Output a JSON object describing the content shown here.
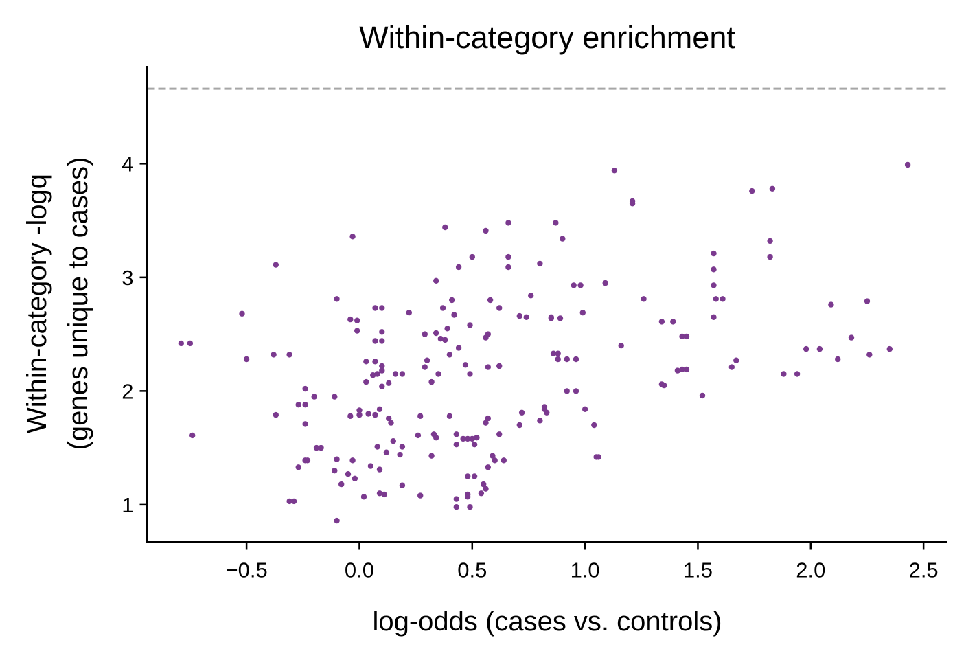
{
  "chart_data": {
    "type": "scatter",
    "title": "Within-category enrichment",
    "xlabel": "log-odds (cases vs. controls)",
    "ylabel_lines": [
      "Within-category -logq",
      "(genes unique to cases)"
    ],
    "xlim": [
      -0.94,
      2.6
    ],
    "ylim": [
      0.67,
      4.86
    ],
    "xticks": [
      -0.5,
      0.0,
      0.5,
      1.0,
      1.5,
      2.0,
      2.5
    ],
    "xtick_labels": [
      "−0.5",
      "0.0",
      "0.5",
      "1.0",
      "1.5",
      "2.0",
      "2.5"
    ],
    "yticks": [
      1,
      2,
      3,
      4
    ],
    "ytick_labels": [
      "1",
      "2",
      "3",
      "4"
    ],
    "threshold_line": {
      "y": 4.66,
      "style": "dashed",
      "color": "#a6a6a6"
    },
    "grid": false,
    "point_color": "#7b3a8f",
    "points": [
      [
        -0.79,
        2.42
      ],
      [
        -0.75,
        2.42
      ],
      [
        -0.74,
        1.61
      ],
      [
        -0.52,
        2.68
      ],
      [
        -0.5,
        2.28
      ],
      [
        -0.37,
        3.11
      ],
      [
        -0.38,
        2.32
      ],
      [
        -0.37,
        1.79
      ],
      [
        -0.31,
        2.32
      ],
      [
        -0.31,
        1.03
      ],
      [
        -0.29,
        1.03
      ],
      [
        -0.27,
        1.33
      ],
      [
        -0.27,
        1.88
      ],
      [
        -0.24,
        2.02
      ],
      [
        -0.24,
        1.88
      ],
      [
        -0.24,
        1.71
      ],
      [
        -0.24,
        1.39
      ],
      [
        -0.23,
        1.39
      ],
      [
        -0.2,
        1.95
      ],
      [
        -0.19,
        1.5
      ],
      [
        -0.17,
        1.5
      ],
      [
        -0.11,
        1.95
      ],
      [
        -0.11,
        1.3
      ],
      [
        -0.1,
        2.81
      ],
      [
        -0.1,
        1.4
      ],
      [
        -0.1,
        0.86
      ],
      [
        -0.08,
        1.18
      ],
      [
        -0.05,
        1.27
      ],
      [
        -0.04,
        2.63
      ],
      [
        -0.04,
        1.78
      ],
      [
        -0.03,
        3.36
      ],
      [
        -0.03,
        1.39
      ],
      [
        -0.02,
        1.23
      ],
      [
        -0.01,
        2.62
      ],
      [
        -0.01,
        2.53
      ],
      [
        -0.0,
        1.83
      ],
      [
        0.0,
        1.79
      ],
      [
        0.02,
        1.07
      ],
      [
        0.03,
        2.26
      ],
      [
        0.03,
        2.08
      ],
      [
        0.04,
        1.8
      ],
      [
        0.05,
        1.34
      ],
      [
        0.06,
        2.14
      ],
      [
        0.07,
        2.73
      ],
      [
        0.07,
        2.44
      ],
      [
        0.07,
        2.26
      ],
      [
        0.07,
        1.79
      ],
      [
        0.08,
        1.51
      ],
      [
        0.08,
        2.15
      ],
      [
        0.09,
        1.84
      ],
      [
        0.09,
        1.31
      ],
      [
        0.09,
        1.1
      ],
      [
        0.1,
        2.73
      ],
      [
        0.1,
        2.52
      ],
      [
        0.1,
        2.44
      ],
      [
        0.1,
        2.22
      ],
      [
        0.1,
        2.18
      ],
      [
        0.1,
        2.04
      ],
      [
        0.11,
        1.09
      ],
      [
        0.12,
        1.46
      ],
      [
        0.13,
        2.07
      ],
      [
        0.13,
        1.76
      ],
      [
        0.14,
        1.72
      ],
      [
        0.15,
        1.56
      ],
      [
        0.16,
        2.15
      ],
      [
        0.18,
        1.44
      ],
      [
        0.19,
        2.15
      ],
      [
        0.19,
        1.51
      ],
      [
        0.19,
        1.17
      ],
      [
        0.22,
        2.69
      ],
      [
        0.26,
        1.61
      ],
      [
        0.27,
        1.78
      ],
      [
        0.27,
        1.08
      ],
      [
        0.29,
        2.5
      ],
      [
        0.29,
        2.21
      ],
      [
        0.3,
        2.27
      ],
      [
        0.32,
        1.43
      ],
      [
        0.32,
        2.08
      ],
      [
        0.33,
        1.62
      ],
      [
        0.34,
        2.97
      ],
      [
        0.34,
        2.51
      ],
      [
        0.34,
        1.59
      ],
      [
        0.35,
        2.15
      ],
      [
        0.36,
        2.46
      ],
      [
        0.37,
        2.73
      ],
      [
        0.38,
        3.44
      ],
      [
        0.38,
        2.45
      ],
      [
        0.39,
        2.55
      ],
      [
        0.4,
        2.32
      ],
      [
        0.4,
        1.78
      ],
      [
        0.41,
        2.8
      ],
      [
        0.42,
        2.67
      ],
      [
        0.43,
        1.62
      ],
      [
        0.43,
        1.53
      ],
      [
        0.43,
        1.05
      ],
      [
        0.43,
        0.98
      ],
      [
        0.44,
        3.09
      ],
      [
        0.44,
        2.38
      ],
      [
        0.46,
        1.58
      ],
      [
        0.47,
        2.23
      ],
      [
        0.48,
        1.58
      ],
      [
        0.48,
        1.25
      ],
      [
        0.48,
        1.09
      ],
      [
        0.48,
        1.07
      ],
      [
        0.49,
        2.58
      ],
      [
        0.49,
        2.15
      ],
      [
        0.49,
        0.98
      ],
      [
        0.5,
        3.18
      ],
      [
        0.5,
        1.58
      ],
      [
        0.51,
        1.53
      ],
      [
        0.51,
        1.25
      ],
      [
        0.52,
        1.59
      ],
      [
        0.54,
        1.1
      ],
      [
        0.55,
        1.18
      ],
      [
        0.56,
        3.41
      ],
      [
        0.56,
        2.47
      ],
      [
        0.56,
        1.72
      ],
      [
        0.56,
        1.14
      ],
      [
        0.57,
        1.76
      ],
      [
        0.57,
        1.33
      ],
      [
        0.57,
        2.21
      ],
      [
        0.57,
        2.5
      ],
      [
        0.58,
        2.8
      ],
      [
        0.59,
        1.43
      ],
      [
        0.6,
        1.39
      ],
      [
        0.62,
        2.73
      ],
      [
        0.62,
        2.22
      ],
      [
        0.62,
        1.62
      ],
      [
        0.64,
        1.39
      ],
      [
        0.66,
        3.48
      ],
      [
        0.66,
        3.18
      ],
      [
        0.66,
        3.09
      ],
      [
        0.71,
        1.7
      ],
      [
        0.71,
        2.66
      ],
      [
        0.72,
        1.81
      ],
      [
        0.74,
        2.65
      ],
      [
        0.76,
        2.84
      ],
      [
        0.8,
        3.12
      ],
      [
        0.8,
        1.74
      ],
      [
        0.82,
        1.86
      ],
      [
        0.82,
        1.84
      ],
      [
        0.83,
        1.81
      ],
      [
        0.85,
        2.65
      ],
      [
        0.85,
        2.64
      ],
      [
        0.86,
        2.33
      ],
      [
        0.87,
        3.48
      ],
      [
        0.88,
        2.33
      ],
      [
        0.88,
        2.28
      ],
      [
        0.89,
        2.64
      ],
      [
        0.9,
        3.34
      ],
      [
        0.92,
        2.28
      ],
      [
        0.92,
        2.0
      ],
      [
        0.95,
        2.93
      ],
      [
        0.96,
        2.28
      ],
      [
        0.96,
        2.0
      ],
      [
        0.98,
        2.93
      ],
      [
        0.99,
        2.69
      ],
      [
        1.0,
        1.84
      ],
      [
        1.04,
        1.7
      ],
      [
        1.05,
        1.42
      ],
      [
        1.06,
        1.42
      ],
      [
        1.09,
        2.95
      ],
      [
        1.13,
        3.94
      ],
      [
        1.16,
        2.4
      ],
      [
        1.21,
        3.67
      ],
      [
        1.21,
        3.65
      ],
      [
        1.26,
        2.81
      ],
      [
        1.34,
        2.06
      ],
      [
        1.34,
        2.61
      ],
      [
        1.35,
        2.05
      ],
      [
        1.39,
        2.61
      ],
      [
        1.41,
        2.18
      ],
      [
        1.43,
        2.19
      ],
      [
        1.43,
        2.48
      ],
      [
        1.45,
        2.48
      ],
      [
        1.45,
        2.19
      ],
      [
        1.52,
        1.96
      ],
      [
        1.57,
        3.21
      ],
      [
        1.57,
        3.07
      ],
      [
        1.57,
        2.93
      ],
      [
        1.57,
        2.65
      ],
      [
        1.58,
        2.81
      ],
      [
        1.61,
        2.81
      ],
      [
        1.65,
        2.21
      ],
      [
        1.67,
        2.27
      ],
      [
        1.74,
        3.76
      ],
      [
        1.82,
        3.32
      ],
      [
        1.82,
        3.18
      ],
      [
        1.83,
        3.78
      ],
      [
        1.88,
        2.15
      ],
      [
        1.94,
        2.15
      ],
      [
        1.98,
        2.37
      ],
      [
        2.04,
        2.37
      ],
      [
        2.09,
        2.76
      ],
      [
        2.12,
        2.28
      ],
      [
        2.18,
        2.47
      ],
      [
        2.25,
        2.79
      ],
      [
        2.26,
        2.32
      ],
      [
        2.35,
        2.37
      ],
      [
        2.43,
        3.99
      ]
    ]
  }
}
